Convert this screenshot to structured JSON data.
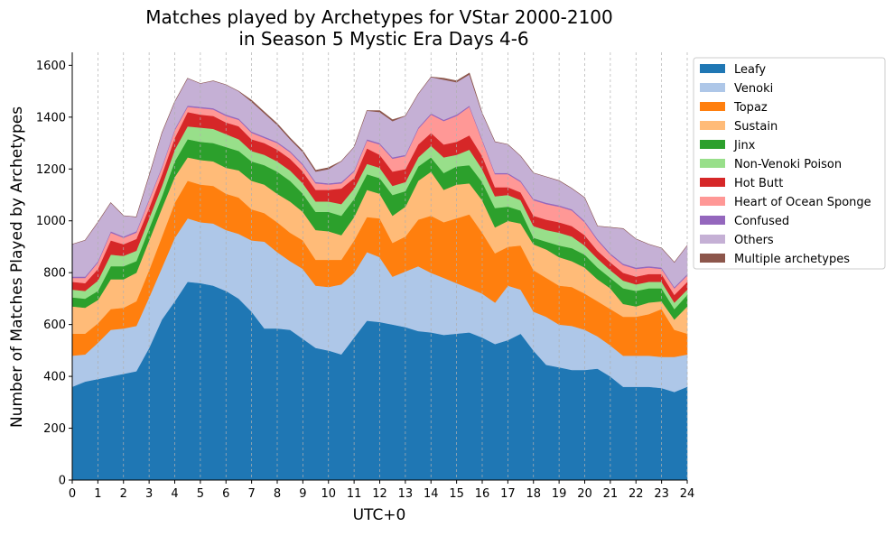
{
  "chart_data": {
    "type": "area",
    "title_line1": "Matches played by Archetypes for VStar 2000-2100",
    "title_line2": "in Season 5 Mystic Era Days 4-6",
    "xlabel": "UTC+0",
    "ylabel": "Number of Matches Played by Archetypes",
    "xlim": [
      0,
      24
    ],
    "ylim": [
      0,
      1650
    ],
    "stacked": true,
    "vertical_grid": true,
    "legend_position": "outside-top-right",
    "x": [
      0,
      0.5,
      1,
      1.5,
      2,
      2.5,
      3,
      3.5,
      4,
      4.5,
      5,
      5.5,
      6,
      6.5,
      7,
      7.5,
      8,
      8.5,
      9,
      9.5,
      10,
      10.5,
      11,
      11.5,
      12,
      12.5,
      13,
      13.5,
      14,
      14.5,
      15,
      15.5,
      16,
      16.5,
      17,
      17.5,
      18,
      18.5,
      19,
      19.5,
      20,
      20.5,
      21,
      21.5,
      22,
      22.5,
      23,
      23.5,
      24
    ],
    "xticks": [
      "0",
      "1",
      "2",
      "3",
      "4",
      "5",
      "6",
      "7",
      "8",
      "9",
      "10",
      "11",
      "12",
      "13",
      "14",
      "15",
      "16",
      "17",
      "18",
      "19",
      "20",
      "21",
      "22",
      "23",
      "24"
    ],
    "yticks": [
      "0",
      "200",
      "400",
      "600",
      "800",
      "1000",
      "1200",
      "1400",
      "1600"
    ],
    "series": [
      {
        "name": "Leafy",
        "color": "#1f77b4",
        "values": [
          360,
          380,
          390,
          400,
          410,
          420,
          510,
          620,
          690,
          765,
          760,
          750,
          730,
          700,
          650,
          585,
          585,
          580,
          545,
          510,
          500,
          485,
          550,
          615,
          610,
          600,
          590,
          575,
          570,
          560,
          565,
          570,
          550,
          525,
          540,
          565,
          500,
          445,
          435,
          425,
          425,
          430,
          400,
          360,
          360,
          360,
          355,
          340,
          360
        ]
      },
      {
        "name": "Venoki",
        "color": "#aec7e8",
        "values": [
          120,
          105,
          140,
          180,
          175,
          175,
          195,
          200,
          245,
          245,
          235,
          240,
          235,
          250,
          275,
          335,
          295,
          265,
          270,
          240,
          245,
          270,
          250,
          265,
          250,
          185,
          215,
          250,
          230,
          220,
          195,
          170,
          170,
          160,
          210,
          170,
          150,
          185,
          165,
          170,
          155,
          125,
          120,
          120,
          120,
          120,
          120,
          135,
          125
        ]
      },
      {
        "name": "Topaz",
        "color": "#ff7f0e",
        "values": [
          85,
          80,
          75,
          80,
          80,
          95,
          105,
          120,
          135,
          145,
          145,
          145,
          140,
          140,
          120,
          110,
          115,
          110,
          110,
          100,
          105,
          95,
          125,
          135,
          150,
          130,
          135,
          180,
          220,
          215,
          250,
          285,
          235,
          190,
          150,
          170,
          160,
          150,
          150,
          150,
          140,
          135,
          140,
          150,
          150,
          160,
          185,
          105,
          80
        ]
      },
      {
        "name": "Sustain",
        "color": "#ffbb78",
        "values": [
          105,
          100,
          90,
          115,
          110,
          110,
          115,
          110,
          100,
          90,
          95,
          95,
          100,
          105,
          110,
          110,
          110,
          120,
          110,
          115,
          110,
          95,
          90,
          105,
          95,
          105,
          115,
          150,
          170,
          125,
          130,
          120,
          125,
          100,
          100,
          85,
          100,
          110,
          110,
          100,
          100,
          85,
          80,
          50,
          40,
          45,
          30,
          40,
          105
        ]
      },
      {
        "name": "Jinx",
        "color": "#2ca02c",
        "values": [
          35,
          35,
          35,
          50,
          50,
          45,
          45,
          45,
          60,
          70,
          70,
          70,
          80,
          75,
          75,
          75,
          85,
          80,
          70,
          70,
          75,
          75,
          70,
          60,
          60,
          80,
          60,
          55,
          55,
          65,
          70,
          70,
          70,
          75,
          55,
          50,
          25,
          30,
          45,
          50,
          50,
          45,
          40,
          60,
          60,
          55,
          50,
          40,
          45
        ]
      },
      {
        "name": "Non-Venoki Poison",
        "color": "#98df8a",
        "values": [
          30,
          30,
          40,
          45,
          40,
          40,
          40,
          40,
          45,
          50,
          55,
          55,
          50,
          45,
          40,
          40,
          40,
          40,
          40,
          40,
          40,
          45,
          40,
          40,
          40,
          35,
          35,
          35,
          45,
          60,
          45,
          60,
          50,
          45,
          45,
          40,
          45,
          45,
          50,
          45,
          35,
          35,
          30,
          30,
          25,
          25,
          25,
          25,
          20
        ]
      },
      {
        "name": "Hot Butt",
        "color": "#d62728",
        "values": [
          30,
          30,
          45,
          55,
          45,
          45,
          40,
          45,
          45,
          55,
          50,
          50,
          45,
          50,
          45,
          45,
          45,
          45,
          45,
          45,
          45,
          60,
          40,
          60,
          50,
          55,
          50,
          50,
          50,
          50,
          50,
          55,
          50,
          35,
          30,
          30,
          40,
          40,
          40,
          40,
          40,
          30,
          30,
          30,
          30,
          30,
          30,
          30,
          30
        ]
      },
      {
        "name": "Heart of Ocean Sponge",
        "color": "#ff9896",
        "values": [
          15,
          20,
          25,
          30,
          25,
          25,
          30,
          25,
          30,
          20,
          25,
          25,
          25,
          25,
          25,
          20,
          25,
          25,
          25,
          25,
          20,
          20,
          25,
          30,
          40,
          50,
          50,
          60,
          70,
          90,
          100,
          110,
          60,
          50,
          50,
          40,
          60,
          60,
          60,
          60,
          50,
          40,
          30,
          30,
          30,
          25,
          20,
          25,
          25
        ]
      },
      {
        "name": "Confused",
        "color": "#9467bd",
        "values": [
          5,
          5,
          5,
          5,
          5,
          5,
          5,
          5,
          5,
          5,
          5,
          5,
          5,
          5,
          5,
          5,
          5,
          5,
          5,
          5,
          5,
          5,
          5,
          5,
          5,
          5,
          5,
          5,
          5,
          5,
          5,
          5,
          5,
          5,
          5,
          5,
          5,
          5,
          5,
          5,
          5,
          5,
          5,
          5,
          5,
          5,
          5,
          5,
          5
        ]
      },
      {
        "name": "Others",
        "color": "#c5b0d5",
        "values": [
          125,
          140,
          150,
          110,
          80,
          55,
          90,
          130,
          105,
          105,
          90,
          105,
          115,
          105,
          115,
          90,
          65,
          45,
          45,
          40,
          55,
          80,
          90,
          110,
          120,
          140,
          150,
          130,
          140,
          155,
          125,
          120,
          100,
          120,
          110,
          95,
          100,
          100,
          95,
          80,
          90,
          50,
          100,
          135,
          110,
          85,
          75,
          95,
          110
        ]
      },
      {
        "name": "Multiple archetypes",
        "color": "#8c564b",
        "values": [
          0,
          0,
          0,
          0,
          0,
          0,
          0,
          0,
          0,
          0,
          0,
          0,
          0,
          0,
          5,
          5,
          5,
          5,
          5,
          5,
          5,
          0,
          0,
          0,
          5,
          5,
          0,
          0,
          0,
          5,
          5,
          5,
          0,
          0,
          0,
          0,
          0,
          0,
          0,
          0,
          0,
          0,
          0,
          0,
          0,
          0,
          0,
          0,
          0
        ]
      }
    ]
  }
}
